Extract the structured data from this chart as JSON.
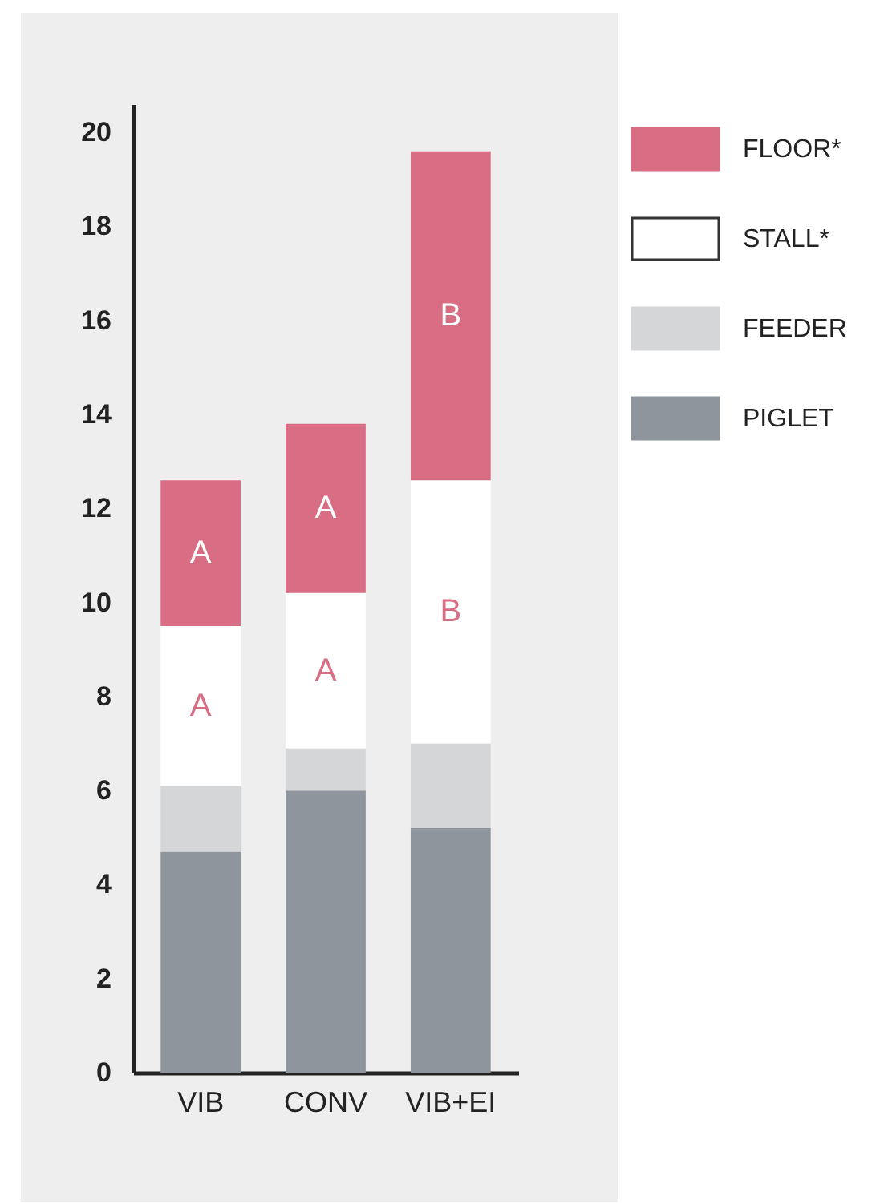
{
  "chart_data": {
    "type": "bar",
    "stacked": true,
    "categories": [
      "VIB",
      "CONV",
      "VIB+EI"
    ],
    "series": [
      {
        "name": "PIGLET",
        "color": "#8f959c",
        "values": [
          4.7,
          6.0,
          5.2
        ]
      },
      {
        "name": "FEEDER",
        "color": "#d5d6d8",
        "values": [
          1.4,
          0.9,
          1.8
        ]
      },
      {
        "name": "STALL*",
        "color": "#ffffff",
        "values": [
          3.4,
          3.3,
          5.6
        ],
        "value_labels": [
          "A",
          "A",
          "B"
        ]
      },
      {
        "name": "FLOOR*",
        "color": "#d86d84",
        "values": [
          3.1,
          3.6,
          7.0
        ],
        "value_labels": [
          "A",
          "A",
          "B"
        ]
      }
    ],
    "ylim": [
      0,
      20.6
    ],
    "yticks": [
      0,
      2,
      4,
      6,
      8,
      10,
      12,
      14,
      16,
      18,
      20
    ],
    "grid": false,
    "legend": "top right"
  }
}
